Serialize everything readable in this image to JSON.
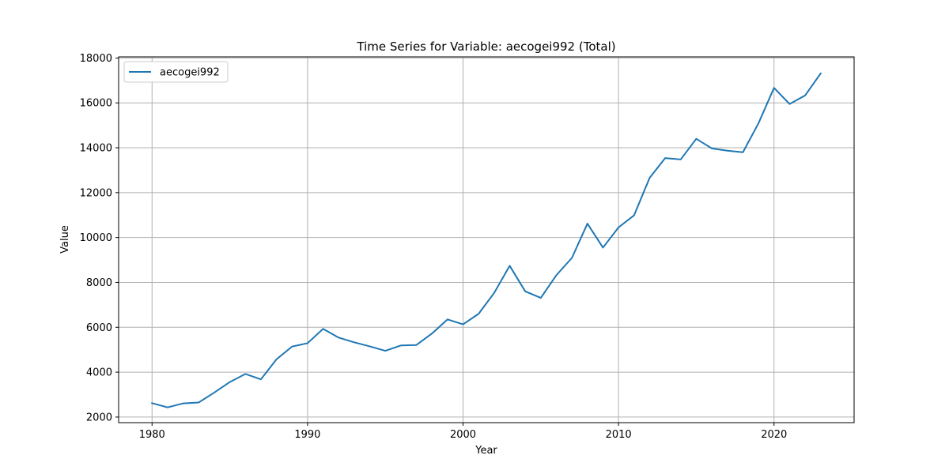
{
  "chart_data": {
    "type": "line",
    "title": "Time Series for Variable: aecogei992 (Total)",
    "xlabel": "Year",
    "ylabel": "Value",
    "xlim": [
      1977.85,
      2025.15
    ],
    "ylim": [
      1750,
      18050
    ],
    "xticks": [
      1980,
      1990,
      2000,
      2010,
      2020
    ],
    "yticks": [
      2000,
      4000,
      6000,
      8000,
      10000,
      12000,
      14000,
      16000,
      18000
    ],
    "grid": true,
    "legend_position": "upper-left",
    "series": [
      {
        "name": "aecogei992",
        "color": "#1f77b4",
        "x": [
          1980,
          1981,
          1982,
          1983,
          1984,
          1985,
          1986,
          1987,
          1988,
          1989,
          1990,
          1991,
          1992,
          1993,
          1994,
          1995,
          1996,
          1997,
          1998,
          1999,
          2000,
          2001,
          2002,
          2003,
          2004,
          2005,
          2006,
          2007,
          2008,
          2009,
          2010,
          2011,
          2012,
          2013,
          2014,
          2015,
          2016,
          2017,
          2018,
          2019,
          2020,
          2021,
          2022,
          2023
        ],
        "y": [
          2620,
          2430,
          2610,
          2650,
          3090,
          3560,
          3920,
          3680,
          4570,
          5140,
          5290,
          5930,
          5540,
          5330,
          5150,
          4950,
          5190,
          5210,
          5720,
          6350,
          6130,
          6600,
          7530,
          8740,
          7600,
          7310,
          8320,
          9090,
          10620,
          9550,
          10450,
          10990,
          12660,
          13540,
          13480,
          14400,
          13970,
          13870,
          13800,
          15090,
          16670,
          15950,
          16330,
          17310
        ]
      }
    ]
  }
}
